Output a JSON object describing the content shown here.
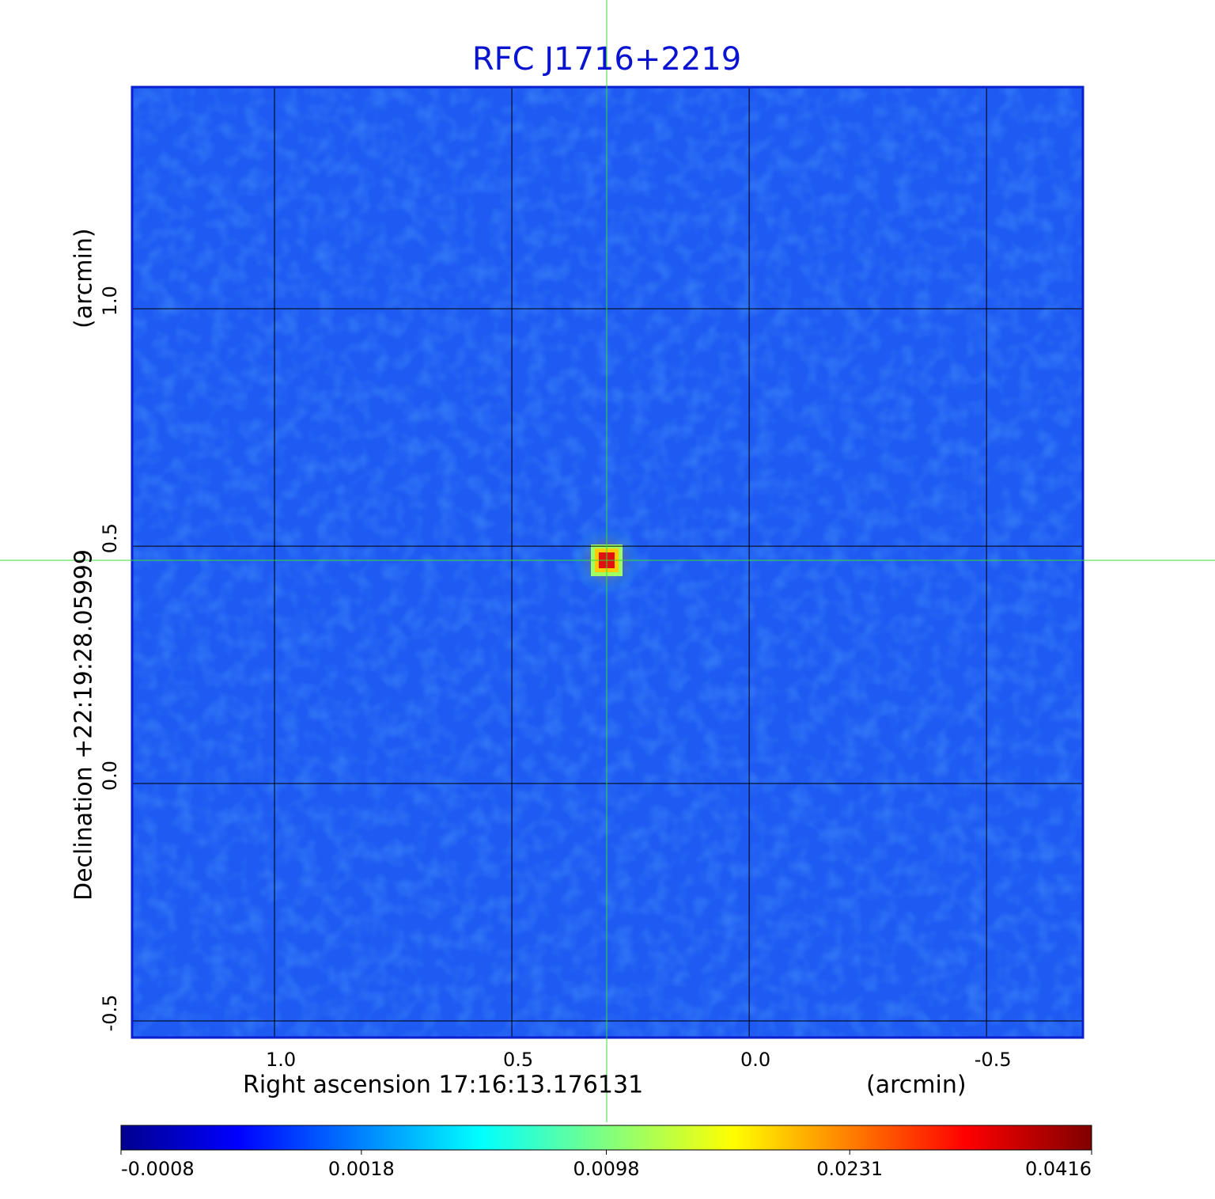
{
  "chart_data": {
    "type": "image",
    "title": "RFC J1716+2219",
    "x_label": "Right ascension  17:16:13.176131",
    "x_unit": "(arcmin)",
    "y_label": "Declination  +22:19:28.05999",
    "y_unit": "(arcmin)",
    "xlim": [
      1.3,
      -0.703
    ],
    "ylim": [
      -0.535,
      1.467
    ],
    "xticks": [
      {
        "value": 1,
        "label": "1.0"
      },
      0.5,
      {
        "value": 0,
        "label": "0.0"
      },
      -0.5
    ],
    "yticks": [
      {
        "value": 1,
        "label": "1.0"
      },
      0.5,
      {
        "value": 0,
        "label": "0.0"
      },
      -0.5
    ],
    "grid": true,
    "colorbar": {
      "lim": [
        -0.0008,
        0.0416
      ],
      "ticks": [
        -0.0008,
        0.0018,
        0.0098,
        0.0231,
        0.0416
      ],
      "scale": "sqrt"
    }
  }
}
